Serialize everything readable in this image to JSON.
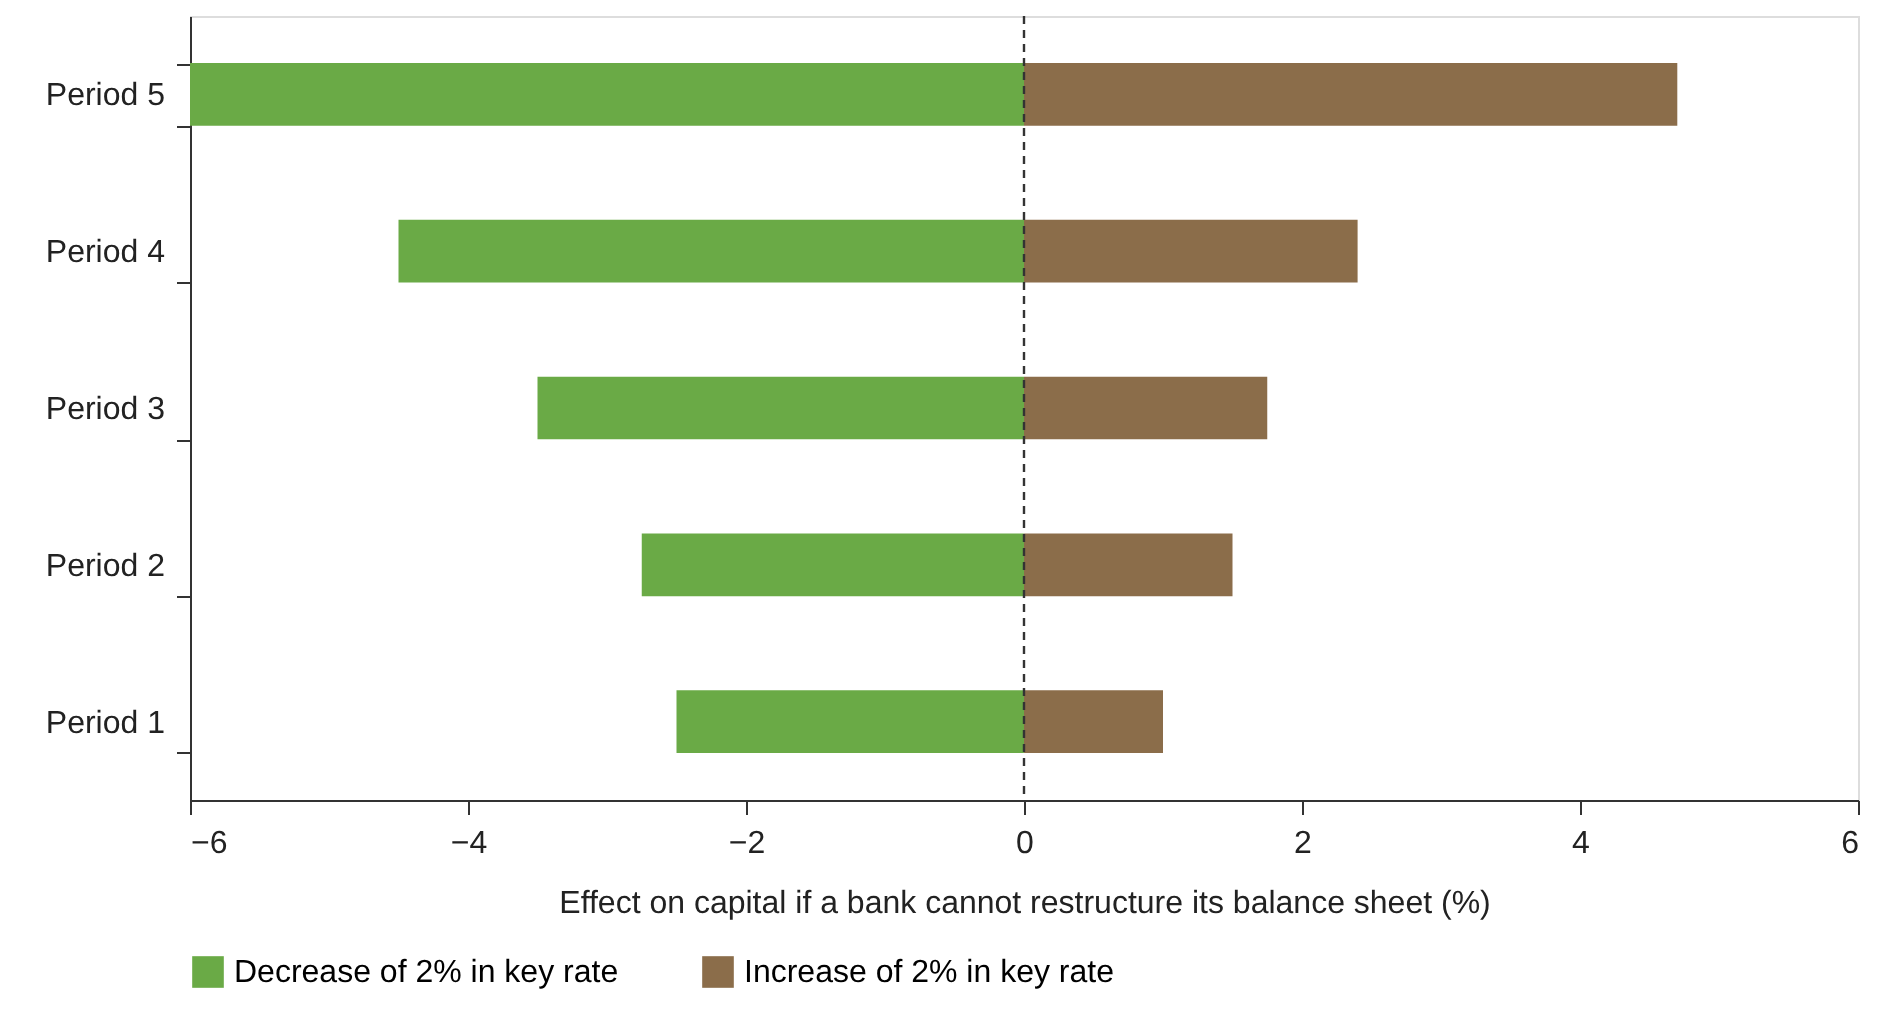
{
  "chart_data": {
    "type": "bar",
    "orientation": "horizontal",
    "xlabel": "Effect on capital if a bank cannot restructure its balance sheet (%)",
    "categories": [
      "Period 5",
      "Period 4",
      "Period 3",
      "Period 2",
      "Period 1"
    ],
    "series": [
      {
        "name": "Decrease of 2% in key rate",
        "color": "#6aaa46",
        "values": [
          -6.0,
          -4.5,
          -3.5,
          -2.75,
          -2.5
        ]
      },
      {
        "name": "Increase of 2% in key rate",
        "color": "#8b6d4a",
        "values": [
          4.7,
          2.4,
          1.75,
          1.5,
          1.0
        ]
      }
    ],
    "xlim": [
      -6,
      6
    ],
    "xticks": [
      {
        "value": -6,
        "label": "−6"
      },
      {
        "value": -4,
        "label": "−4"
      },
      {
        "value": -2,
        "label": "−2"
      },
      0,
      2,
      4,
      6
    ],
    "ref_lines": [
      {
        "axis": "x",
        "value": 0,
        "line_style": "dashed",
        "color": "#333333"
      }
    ],
    "grid": false,
    "legend": "bottom",
    "stacked": true
  }
}
